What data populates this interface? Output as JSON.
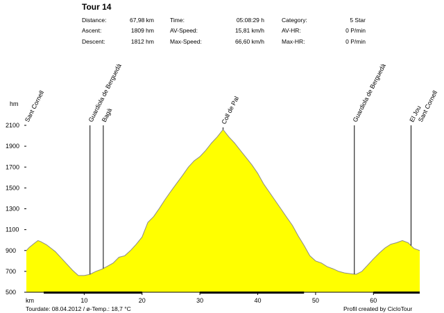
{
  "header": {
    "title": "Tour 14",
    "stats": [
      [
        {
          "label": "Distance:",
          "value": "67,98 km"
        },
        {
          "label": "Time:",
          "value": "05:08:29 h"
        },
        {
          "label": "Category:",
          "value": "5 Star"
        }
      ],
      [
        {
          "label": "Ascent:",
          "value": "1809 hm"
        },
        {
          "label": "AV-Speed:",
          "value": "15,81 km/h"
        },
        {
          "label": "AV-HR:",
          "value": "0 P/min"
        }
      ],
      [
        {
          "label": "Descent:",
          "value": "1812 hm"
        },
        {
          "label": "Max-Speed:",
          "value": "66,60 km/h"
        },
        {
          "label": "Max-HR:",
          "value": "0 P/min"
        }
      ]
    ]
  },
  "footer": {
    "left": "Tourdate: 08.04.2012 / ø-Temp.: 18,7 °C",
    "right": "Profil created by CicloTour"
  },
  "colors": {
    "fill": "#ffff00",
    "outline": "#8a8a8a",
    "marker": "#000000"
  },
  "chart_data": {
    "type": "area",
    "ylabel": "hm",
    "xlabel": "km",
    "xlim": [
      0,
      68
    ],
    "ylim": [
      500,
      2100
    ],
    "yticks": [
      2100,
      1900,
      1700,
      1500,
      1300,
      1100,
      900,
      700,
      500
    ],
    "xticks": [
      10,
      20,
      30,
      40,
      50,
      60
    ],
    "grid": false,
    "series": [
      {
        "x": [
          0,
          0.5,
          1.5,
          2,
          2.5,
          3.5,
          5,
          6.5,
          8,
          9,
          10,
          11,
          12,
          13,
          14,
          15,
          16,
          17,
          18,
          19,
          20,
          21,
          22,
          23,
          24,
          25,
          26,
          27,
          28,
          29,
          30,
          31,
          32,
          33,
          34,
          35,
          36,
          37,
          38,
          39,
          40,
          41,
          42,
          43,
          44,
          45,
          46,
          47,
          48,
          49,
          50,
          51,
          52,
          53,
          54,
          55,
          56,
          57,
          58,
          59,
          60,
          61,
          62,
          63,
          64,
          65,
          66,
          67,
          68
        ],
        "y": [
          900,
          930,
          975,
          995,
          985,
          955,
          890,
          800,
          710,
          660,
          660,
          672,
          700,
          720,
          748,
          780,
          835,
          850,
          900,
          960,
          1030,
          1170,
          1225,
          1305,
          1390,
          1470,
          1545,
          1620,
          1700,
          1760,
          1800,
          1860,
          1930,
          1990,
          2060,
          1990,
          1930,
          1860,
          1790,
          1720,
          1640,
          1540,
          1460,
          1380,
          1300,
          1220,
          1140,
          1040,
          950,
          850,
          800,
          780,
          745,
          725,
          700,
          685,
          677,
          672,
          700,
          760,
          820,
          875,
          925,
          960,
          975,
          995,
          975,
          920,
          900
        ]
      }
    ],
    "annotations": [
      {
        "x": 0,
        "label": "Sant Cornell"
      },
      {
        "x": 11,
        "label": "Guardiola de Berguedà"
      },
      {
        "x": 13.3,
        "label": "Bagà"
      },
      {
        "x": 34,
        "label": "Coll de Pal"
      },
      {
        "x": 56.7,
        "label": "Guardiola de Berguedà"
      },
      {
        "x": 66.5,
        "label": "El Jou"
      },
      {
        "x": 68,
        "label": "Sant Cornell"
      }
    ],
    "annotation_tops": {
      "Sant Cornell": 2100,
      "Guardiola de Berguedà": 2100,
      "Bagà": 2100,
      "Coll de Pal": 2080,
      "El Jou": 2100
    },
    "axis_bar_segments": [
      [
        3,
        20
      ],
      [
        30,
        48
      ],
      [
        60,
        68
      ]
    ]
  }
}
